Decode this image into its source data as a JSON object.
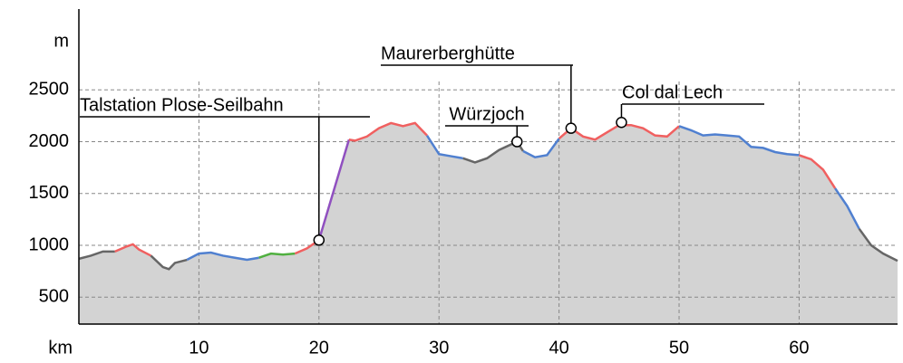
{
  "chart_data": {
    "type": "elevation-profile",
    "y_unit": "m",
    "x_unit": "km",
    "xlim": [
      0,
      68.2
    ],
    "ylim": [
      240,
      3280
    ],
    "xticks": [
      10,
      20,
      30,
      40,
      50,
      60
    ],
    "yticks": [
      500,
      1000,
      1500,
      2000,
      2500
    ],
    "grid": true,
    "fill_color": "#d3d3d3",
    "segments": [
      {
        "color": "#666666",
        "x": [
          0,
          1,
          2,
          3
        ],
        "values": [
          870,
          900,
          940,
          940
        ]
      },
      {
        "color": "#f06060",
        "x": [
          3,
          4,
          4.5,
          5,
          6
        ],
        "values": [
          940,
          990,
          1010,
          960,
          900
        ]
      },
      {
        "color": "#666666",
        "x": [
          6,
          7,
          7.5,
          8,
          9
        ],
        "values": [
          900,
          790,
          770,
          830,
          860
        ]
      },
      {
        "color": "#5080d0",
        "x": [
          9,
          10,
          11,
          12,
          13,
          14,
          15
        ],
        "values": [
          860,
          920,
          930,
          900,
          880,
          860,
          880
        ]
      },
      {
        "color": "#50b040",
        "x": [
          15,
          16,
          17,
          18
        ],
        "values": [
          880,
          920,
          910,
          920
        ]
      },
      {
        "color": "#f06060",
        "x": [
          18,
          19,
          20
        ],
        "values": [
          920,
          970,
          1050
        ]
      },
      {
        "color": "#9050c0",
        "x": [
          20,
          22.5
        ],
        "values": [
          1050,
          2020
        ]
      },
      {
        "color": "#f06060",
        "x": [
          22.5,
          23,
          24,
          25,
          26,
          27,
          28,
          29
        ],
        "values": [
          2020,
          2010,
          2050,
          2130,
          2180,
          2150,
          2180,
          2060
        ]
      },
      {
        "color": "#5080d0",
        "x": [
          29,
          30,
          31,
          32
        ],
        "values": [
          2060,
          1880,
          1860,
          1840
        ]
      },
      {
        "color": "#666666",
        "x": [
          32,
          33,
          34,
          35,
          36.5,
          37
        ],
        "values": [
          1840,
          1800,
          1840,
          1920,
          2000,
          1910
        ]
      },
      {
        "color": "#5080d0",
        "x": [
          37,
          38,
          39,
          40
        ],
        "values": [
          1910,
          1850,
          1870,
          2030
        ]
      },
      {
        "color": "#f06060",
        "x": [
          40,
          41,
          42,
          43,
          44,
          45,
          46,
          47,
          48,
          49,
          50
        ],
        "values": [
          2030,
          2130,
          2050,
          2020,
          2090,
          2160,
          2160,
          2130,
          2060,
          2050,
          2150
        ]
      },
      {
        "color": "#5080d0",
        "x": [
          50,
          51,
          52,
          53,
          54,
          55,
          56,
          57,
          58,
          59,
          60
        ],
        "values": [
          2150,
          2110,
          2060,
          2070,
          2060,
          2050,
          1950,
          1940,
          1900,
          1880,
          1870
        ]
      },
      {
        "color": "#f06060",
        "x": [
          60,
          61,
          62,
          63
        ],
        "values": [
          1870,
          1830,
          1730,
          1550
        ]
      },
      {
        "color": "#5080d0",
        "x": [
          63,
          64,
          65
        ],
        "values": [
          1550,
          1380,
          1160
        ]
      },
      {
        "color": "#666666",
        "x": [
          65,
          66,
          67,
          68.2
        ],
        "values": [
          1160,
          1000,
          920,
          850
        ]
      }
    ],
    "annotations": [
      {
        "text": "Talstation Plose-Seilbahn",
        "x": 20,
        "y": 1050
      },
      {
        "text": "Würzjoch",
        "x": 36.5,
        "y": 2000
      },
      {
        "text": "Maurerberghütte",
        "x": 41,
        "y": 2130
      },
      {
        "text": "Col dal Lech",
        "x": 45.2,
        "y": 2186
      }
    ]
  }
}
